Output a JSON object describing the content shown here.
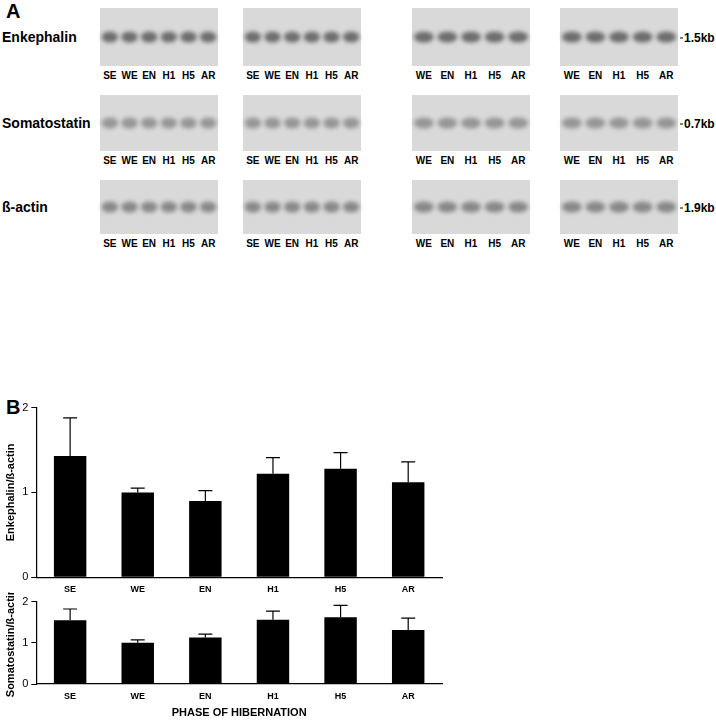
{
  "panel_labels": [
    "A",
    "B"
  ],
  "panel_a": {
    "rows": [
      {
        "name": "Enkephalin",
        "size": "1.5kb"
      },
      {
        "name": "Somatostatin",
        "size": "0.7kb"
      },
      {
        "name": "ß-actin",
        "size": "1.9kb"
      }
    ],
    "blots": [
      {
        "lanes": [
          "SE",
          "WE",
          "EN",
          "H1",
          "H5",
          "AR"
        ]
      },
      {
        "lanes": [
          "SE",
          "WE",
          "EN",
          "H1",
          "H5",
          "AR"
        ]
      },
      {
        "lanes": [
          "WE",
          "EN",
          "H1",
          "H5",
          "AR"
        ]
      },
      {
        "lanes": [
          "WE",
          "EN",
          "H1",
          "H5",
          "AR"
        ]
      }
    ]
  },
  "chart_data": [
    {
      "type": "bar",
      "y_label": "Enkephalin/ß-actin",
      "categories": [
        "SE",
        "WE",
        "EN",
        "H1",
        "H5",
        "AR"
      ],
      "values": [
        1.43,
        1.0,
        0.9,
        1.22,
        1.28,
        1.12
      ],
      "errors": [
        0.45,
        0.05,
        0.12,
        0.19,
        0.19,
        0.24
      ],
      "color": "#000000",
      "ylim": [
        0,
        2
      ],
      "yticks": [
        0,
        1,
        2
      ],
      "grid": false
    },
    {
      "type": "bar",
      "y_label": "Somatostatin/ß-actin",
      "x_label": "PHASE OF HIBERNATION",
      "categories": [
        "SE",
        "WE",
        "EN",
        "H1",
        "H5",
        "AR"
      ],
      "values": [
        1.55,
        1.0,
        1.13,
        1.56,
        1.62,
        1.31
      ],
      "errors": [
        0.27,
        0.07,
        0.08,
        0.21,
        0.29,
        0.29
      ],
      "color": "#000000",
      "ylim": [
        0,
        2
      ],
      "yticks": [
        0,
        1,
        2
      ],
      "grid": false
    }
  ]
}
